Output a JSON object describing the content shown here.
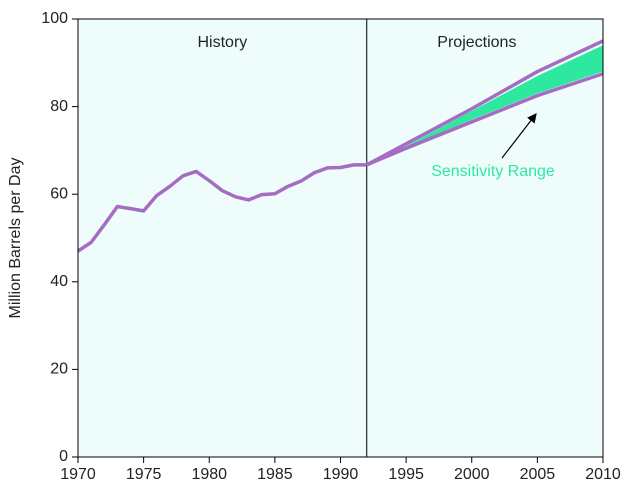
{
  "chart_data": {
    "type": "line",
    "ylabel": "Million Barrels per Day",
    "xlim": [
      1970,
      2010
    ],
    "xticks": [
      1970,
      1975,
      1980,
      1985,
      1990,
      1995,
      2000,
      2005,
      2010
    ],
    "ylim": [
      0,
      100
    ],
    "yticks": [
      0,
      20,
      40,
      60,
      80,
      100
    ],
    "divider_x": 1992,
    "annotations": [
      "History",
      "Projections",
      "Sensitivity Range"
    ],
    "annotation_color": "#2ee8a0",
    "background": "#effcfc",
    "series": [
      {
        "color": "#a56cc1",
        "x": [
          1970,
          1971,
          1972,
          1973,
          1974,
          1975,
          1976,
          1977,
          1978,
          1979,
          1980,
          1981,
          1982,
          1983,
          1984,
          1985,
          1986,
          1987,
          1988,
          1989,
          1990,
          1991,
          1992
        ],
        "values": [
          47,
          49,
          53,
          57.2,
          56.7,
          56.2,
          59.7,
          61.8,
          64.2,
          65.2,
          63.1,
          60.8,
          59.4,
          58.7,
          59.9,
          60.1,
          61.8,
          63.0,
          64.9,
          66.0,
          66.1,
          66.7,
          66.7
        ]
      },
      {
        "color": "#a56cc1",
        "x": [
          1992,
          1995,
          2000,
          2005,
          2010
        ],
        "values": [
          66.7,
          71.5,
          79.5,
          88,
          95
        ]
      },
      {
        "color": "#a56cc1",
        "x": [
          1992,
          1995,
          2000,
          2005,
          2010
        ],
        "values": [
          66.7,
          70.5,
          76.5,
          82.5,
          87.5
        ]
      }
    ],
    "band": {
      "color": "#2ee8a0",
      "x": [
        1992,
        1995,
        2000,
        2005,
        2010
      ],
      "upper": [
        66.7,
        71,
        79,
        87,
        94
      ],
      "lower": [
        66.7,
        70.7,
        77,
        83,
        88
      ]
    }
  }
}
